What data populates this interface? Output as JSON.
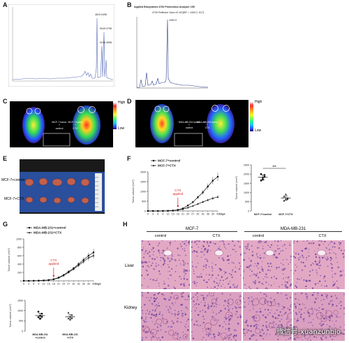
{
  "panels": {
    "A": {
      "label": "A",
      "peak_labels": [
        "4819.0498",
        "5049.0798",
        "5246.2898"
      ]
    },
    "B": {
      "label": "B",
      "title": "Applied Biosystems 4700 Proteomics Analyzer 155",
      "subtitle": "4700 Reflector Spec #1 MC[BP = 1063.2, 817]",
      "peak_label": "1063.5"
    },
    "C": {
      "label": "C",
      "mouse_labels": [
        "MCF-7 tumor\n+\ncontrol",
        "MCF-7 tumor\n+\nCTX"
      ],
      "colorbar_high": "High",
      "colorbar_low": "Low"
    },
    "D": {
      "label": "D",
      "mouse_labels": [
        "MDA-MB-231 tumor\n+\ncontrol",
        "MDA-MB-231 tumor\n+\nCTX"
      ],
      "colorbar_high": "High",
      "colorbar_low": "Low"
    },
    "E": {
      "label": "E",
      "row_labels": [
        "MCF-7+control",
        "MCF-7+CTX"
      ]
    },
    "F": {
      "label": "F"
    },
    "G": {
      "label": "G"
    },
    "H": {
      "label": "H",
      "groups": [
        "MCF-7",
        "MDA-MB-231"
      ],
      "columns": [
        "control",
        "CTX",
        "control",
        "CTX"
      ],
      "rows": [
        "Liver",
        "Kidney"
      ]
    }
  },
  "watermark": "微信号:xuanzunbio",
  "chart_data": [
    {
      "id": "F-line",
      "type": "line",
      "xlabel": "Days",
      "ylabel": "Tumor volume (mm³)",
      "x": [
        0,
        3,
        6,
        9,
        12,
        15,
        18,
        21,
        24,
        27,
        30,
        33,
        36,
        39,
        42
      ],
      "ylim": [
        0,
        2000
      ],
      "yticks": [
        0,
        500,
        1000,
        1500,
        2000
      ],
      "annotation": "CTX\napplied",
      "annotation_x": 18,
      "series": [
        {
          "name": "MCF-7+control",
          "values": [
            0,
            0,
            0,
            5,
            10,
            25,
            60,
            130,
            280,
            450,
            700,
            950,
            1250,
            1550,
            1750
          ]
        },
        {
          "name": "MCF-7+CTX",
          "values": [
            0,
            0,
            0,
            5,
            10,
            20,
            50,
            90,
            170,
            260,
            360,
            460,
            560,
            650,
            720
          ]
        }
      ]
    },
    {
      "id": "F-scatter",
      "type": "scatter",
      "ylabel": "Tumor volume (mm³)",
      "categories": [
        "MCF-7+control",
        "MCF-7+CTX"
      ],
      "ylim": [
        0,
        2500
      ],
      "yticks": [
        0,
        500,
        1000,
        1500,
        2000,
        2500
      ],
      "significance": "***",
      "series": [
        {
          "name": "MCF-7+control",
          "values": [
            1650,
            1800,
            1950,
            2000,
            1700,
            1850
          ]
        },
        {
          "name": "MCF-7+CTX",
          "values": [
            550,
            620,
            700,
            780,
            900,
            650
          ]
        }
      ]
    },
    {
      "id": "G-line",
      "type": "line",
      "xlabel": "Days",
      "ylabel": "Tumor volume (mm³)",
      "x": [
        0,
        3,
        6,
        9,
        12,
        15,
        18,
        21,
        24,
        27,
        30,
        33,
        36,
        39,
        42
      ],
      "ylim": [
        0,
        1000
      ],
      "yticks": [
        0,
        200,
        400,
        600,
        800,
        1000
      ],
      "annotation": "CTX\napplied",
      "annotation_x": 18,
      "series": [
        {
          "name": "MDA-MB-231+control",
          "values": [
            0,
            0,
            2,
            5,
            10,
            20,
            40,
            80,
            140,
            220,
            300,
            400,
            500,
            600,
            680
          ]
        },
        {
          "name": "MDA-MB-231+CTX",
          "values": [
            0,
            0,
            2,
            5,
            10,
            18,
            35,
            70,
            125,
            200,
            280,
            370,
            460,
            550,
            600
          ]
        }
      ]
    },
    {
      "id": "G-scatter",
      "type": "scatter",
      "ylabel": "Tumor volume (mm³)",
      "categories": [
        "MDA-MB-231\n+control",
        "MDA-MB-231\n+CTX"
      ],
      "ylim": [
        0,
        1500
      ],
      "yticks": [
        0,
        500,
        1000,
        1500
      ],
      "series": [
        {
          "name": "MDA-MB-231+control",
          "values": [
            680,
            750,
            850,
            950,
            600,
            700
          ]
        },
        {
          "name": "MDA-MB-231+CTX",
          "values": [
            620,
            700,
            780,
            900,
            560,
            640
          ]
        }
      ]
    }
  ]
}
